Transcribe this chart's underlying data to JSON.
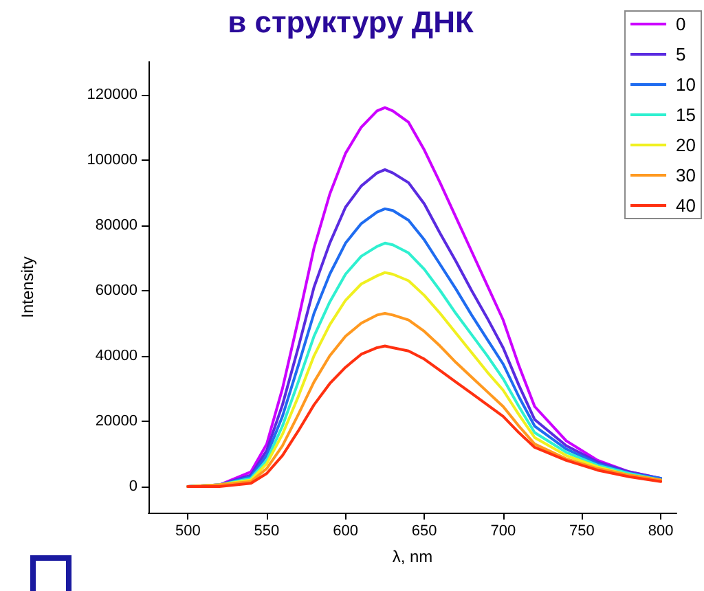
{
  "chart_data": {
    "type": "line",
    "title": "в структуру ДНК",
    "xlabel": "λ, nm",
    "ylabel": "Intensity",
    "x": [
      500,
      520,
      540,
      550,
      560,
      570,
      580,
      590,
      600,
      610,
      620,
      625,
      630,
      640,
      650,
      660,
      670,
      680,
      690,
      700,
      710,
      720,
      740,
      760,
      780,
      800
    ],
    "series": [
      {
        "name": "0",
        "color": "#cc00ff",
        "values": [
          0,
          500,
          4500,
          13000,
          30000,
          51000,
          73000,
          89500,
          102000,
          110000,
          115000,
          116000,
          115000,
          111500,
          103000,
          93000,
          82500,
          72000,
          61500,
          51000,
          37000,
          24500,
          14000,
          8000,
          4500,
          2500
        ]
      },
      {
        "name": "5",
        "color": "#5a2be0",
        "values": [
          0,
          500,
          3500,
          11000,
          25000,
          42500,
          61000,
          74500,
          85500,
          92000,
          96000,
          97000,
          96000,
          93000,
          86500,
          77500,
          69000,
          60000,
          51500,
          42500,
          31000,
          20500,
          12500,
          7500,
          4500,
          2500
        ]
      },
      {
        "name": "10",
        "color": "#1f6cf0",
        "values": [
          0,
          500,
          3000,
          9500,
          21500,
          37000,
          53000,
          65000,
          74500,
          80500,
          84000,
          85000,
          84500,
          81500,
          75500,
          68000,
          60500,
          52500,
          45000,
          37500,
          27500,
          18500,
          11500,
          7000,
          4000,
          2500
        ]
      },
      {
        "name": "15",
        "color": "#2ff0d0",
        "values": [
          0,
          500,
          2500,
          8000,
          18500,
          32000,
          46000,
          56500,
          65000,
          70500,
          73500,
          74500,
          74000,
          71500,
          66500,
          60000,
          53000,
          46500,
          40000,
          33000,
          24500,
          16500,
          10500,
          6500,
          4000,
          2000
        ]
      },
      {
        "name": "20",
        "color": "#f0f020",
        "values": [
          0,
          500,
          2000,
          7000,
          16000,
          27500,
          40000,
          49500,
          57000,
          62000,
          64500,
          65500,
          65000,
          63000,
          58500,
          53000,
          47000,
          41000,
          35000,
          29500,
          22000,
          15000,
          9500,
          6000,
          3500,
          2000
        ]
      },
      {
        "name": "30",
        "color": "#ff9920",
        "values": [
          0,
          500,
          1500,
          5500,
          12500,
          22000,
          32000,
          40000,
          46000,
          50000,
          52500,
          53000,
          52500,
          51000,
          47500,
          43000,
          38000,
          33500,
          29000,
          24500,
          18500,
          13000,
          8500,
          5500,
          3500,
          2000
        ]
      },
      {
        "name": "40",
        "color": "#ff3010",
        "values": [
          0,
          0,
          1000,
          4000,
          9500,
          17000,
          25000,
          31500,
          36500,
          40500,
          42500,
          43000,
          42500,
          41500,
          39000,
          35500,
          32000,
          28500,
          25000,
          21500,
          16500,
          12000,
          8000,
          5000,
          3000,
          1500
        ]
      }
    ],
    "xlim": [
      475,
      810
    ],
    "xticks": [
      500,
      550,
      600,
      650,
      700,
      750,
      800
    ],
    "ylim": [
      -8000,
      130000
    ],
    "yticks": [
      0,
      20000,
      40000,
      60000,
      80000,
      100000,
      120000
    ],
    "grid": false,
    "legend": "top right",
    "marker": "none",
    "line_style": "solid"
  }
}
